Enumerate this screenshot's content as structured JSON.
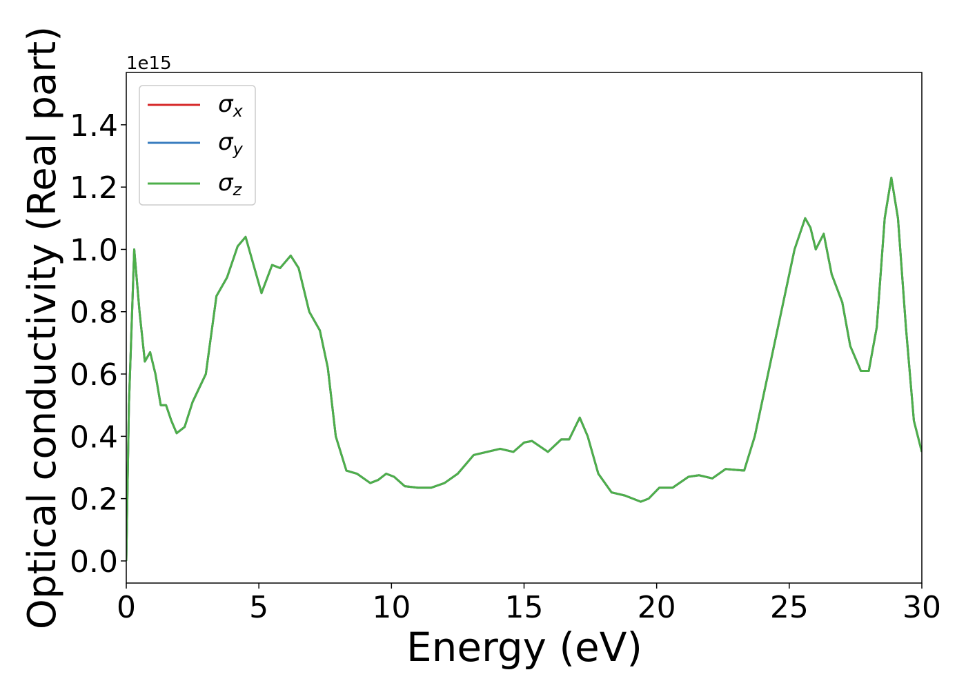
{
  "chart_data": {
    "type": "line",
    "xlabel": "Energy (eV)",
    "ylabel": "Optical conductivity (Real part)",
    "y_offset_text": "1e15",
    "x": [
      0,
      0.1,
      0.3,
      0.5,
      0.7,
      0.9,
      1.1,
      1.3,
      1.5,
      1.7,
      1.9,
      2.2,
      2.5,
      3.0,
      3.4,
      3.8,
      4.2,
      4.5,
      4.8,
      5.1,
      5.5,
      5.8,
      6.2,
      6.5,
      6.9,
      7.3,
      7.6,
      7.9,
      8.3,
      8.7,
      9.2,
      9.5,
      9.8,
      10.1,
      10.5,
      11,
      11.5,
      12,
      12.5,
      12.8,
      13.1,
      13.6,
      14.1,
      14.6,
      15.0,
      15.3,
      15.9,
      16.4,
      16.7,
      17.1,
      17.4,
      17.8,
      18.3,
      18.8,
      19.4,
      19.7,
      20.1,
      20.6,
      21.2,
      21.6,
      22.1,
      22.6,
      23.3,
      23.7,
      24.2,
      24.7,
      25.2,
      25.6,
      25.8,
      26.0,
      26.3,
      26.6,
      27.0,
      27.3,
      27.7,
      28.0,
      28.3,
      28.6,
      28.85,
      29.1,
      29.4,
      29.7,
      30
    ],
    "series": [
      {
        "name": "σx",
        "color": "#d62728",
        "values": [
          0,
          0.5,
          1.0,
          0.8,
          0.64,
          0.67,
          0.6,
          0.5,
          0.5,
          0.45,
          0.41,
          0.43,
          0.51,
          0.6,
          0.85,
          0.91,
          1.01,
          1.04,
          0.95,
          0.86,
          0.95,
          0.94,
          0.98,
          0.94,
          0.8,
          0.74,
          0.62,
          0.4,
          0.29,
          0.28,
          0.25,
          0.26,
          0.28,
          0.27,
          0.24,
          0.235,
          0.235,
          0.25,
          0.28,
          0.31,
          0.34,
          0.35,
          0.36,
          0.35,
          0.38,
          0.385,
          0.35,
          0.39,
          0.39,
          0.46,
          0.4,
          0.28,
          0.22,
          0.21,
          0.19,
          0.2,
          0.235,
          0.235,
          0.27,
          0.275,
          0.265,
          0.295,
          0.29,
          0.4,
          0.6,
          0.8,
          1.0,
          1.1,
          1.07,
          1.0,
          1.05,
          0.92,
          0.83,
          0.69,
          0.61,
          0.61,
          0.75,
          1.1,
          1.23,
          1.1,
          0.75,
          0.45,
          0.35
        ]
      },
      {
        "name": "σy",
        "color": "#3a7dbf",
        "values": [
          0,
          0.5,
          1.0,
          0.8,
          0.64,
          0.67,
          0.6,
          0.5,
          0.5,
          0.45,
          0.41,
          0.43,
          0.51,
          0.6,
          0.85,
          0.91,
          1.01,
          1.04,
          0.95,
          0.86,
          0.95,
          0.94,
          0.98,
          0.94,
          0.8,
          0.74,
          0.62,
          0.4,
          0.29,
          0.28,
          0.25,
          0.26,
          0.28,
          0.27,
          0.24,
          0.235,
          0.235,
          0.25,
          0.28,
          0.31,
          0.34,
          0.35,
          0.36,
          0.35,
          0.38,
          0.385,
          0.35,
          0.39,
          0.39,
          0.46,
          0.4,
          0.28,
          0.22,
          0.21,
          0.19,
          0.2,
          0.235,
          0.235,
          0.27,
          0.275,
          0.265,
          0.295,
          0.29,
          0.4,
          0.6,
          0.8,
          1.0,
          1.1,
          1.07,
          1.0,
          1.05,
          0.92,
          0.83,
          0.69,
          0.61,
          0.61,
          0.75,
          1.1,
          1.23,
          1.1,
          0.75,
          0.45,
          0.35
        ]
      },
      {
        "name": "σz",
        "color": "#4daf4a",
        "values": [
          0,
          0.5,
          1.0,
          0.8,
          0.64,
          0.67,
          0.6,
          0.5,
          0.5,
          0.45,
          0.41,
          0.43,
          0.51,
          0.6,
          0.85,
          0.91,
          1.01,
          1.04,
          0.95,
          0.86,
          0.95,
          0.94,
          0.98,
          0.94,
          0.8,
          0.74,
          0.62,
          0.4,
          0.29,
          0.28,
          0.25,
          0.26,
          0.28,
          0.27,
          0.24,
          0.235,
          0.235,
          0.25,
          0.28,
          0.31,
          0.34,
          0.35,
          0.36,
          0.35,
          0.38,
          0.385,
          0.35,
          0.39,
          0.39,
          0.46,
          0.4,
          0.28,
          0.22,
          0.21,
          0.19,
          0.2,
          0.235,
          0.235,
          0.27,
          0.275,
          0.265,
          0.295,
          0.29,
          0.4,
          0.6,
          0.8,
          1.0,
          1.1,
          1.07,
          1.0,
          1.05,
          0.92,
          0.83,
          0.69,
          0.61,
          0.61,
          0.75,
          1.1,
          1.23,
          1.1,
          0.75,
          0.45,
          0.35
        ]
      }
    ],
    "xlim": [
      0,
      30
    ],
    "xticks": [
      0,
      5,
      10,
      15,
      20,
      25,
      30
    ],
    "ylim": [
      -0.071,
      1.568
    ],
    "yticks": [
      {
        "value": 0,
        "label": "0.0"
      },
      0.2,
      0.4,
      0.6,
      0.8,
      {
        "value": 1,
        "label": "1.0"
      },
      1.2,
      1.4
    ],
    "legend": "upper left",
    "grid": false
  }
}
